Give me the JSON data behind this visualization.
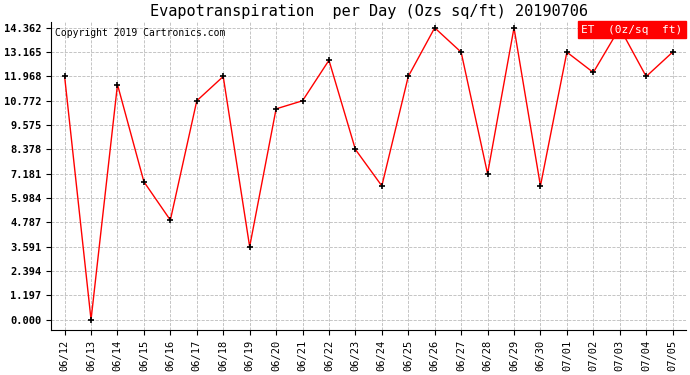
{
  "title": "Evapotranspiration  per Day (Ozs sq/ft) 20190706",
  "copyright": "Copyright 2019 Cartronics.com",
  "legend_label": "ET  (0z/sq  ft)",
  "x_labels": [
    "06/12",
    "06/13",
    "06/14",
    "06/15",
    "06/16",
    "06/17",
    "06/18",
    "06/19",
    "06/20",
    "06/21",
    "06/22",
    "06/23",
    "06/24",
    "06/25",
    "06/26",
    "06/27",
    "06/28",
    "06/29",
    "06/30",
    "07/01",
    "07/02",
    "07/03",
    "07/04",
    "07/05"
  ],
  "y_values": [
    11.968,
    0.0,
    11.571,
    6.787,
    4.9,
    10.772,
    11.968,
    3.591,
    10.374,
    10.772,
    12.765,
    8.378,
    6.584,
    11.968,
    14.362,
    13.165,
    7.181,
    14.362,
    6.584,
    13.165,
    12.165,
    14.362,
    11.968,
    13.165
  ],
  "y_ticks": [
    0.0,
    1.197,
    2.394,
    3.591,
    4.787,
    5.984,
    7.181,
    8.378,
    9.575,
    10.772,
    11.968,
    13.165,
    14.362
  ],
  "y_min": 0.0,
  "y_max": 14.362,
  "line_color": "red",
  "marker_color": "black",
  "bg_color": "#ffffff",
  "grid_color": "#bbbbbb",
  "legend_bg": "red",
  "legend_fg": "white",
  "title_fontsize": 11,
  "copyright_fontsize": 7,
  "tick_fontsize": 7.5,
  "legend_fontsize": 8
}
